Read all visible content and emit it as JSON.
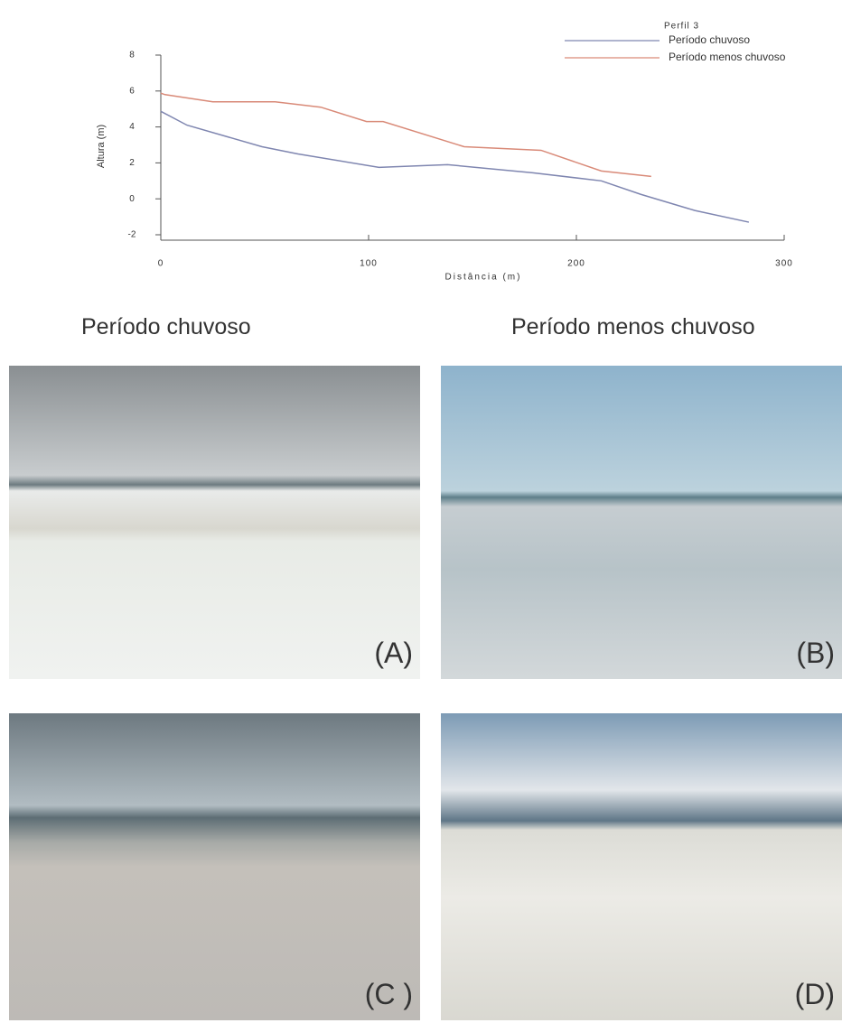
{
  "chart_data": {
    "type": "line",
    "title": "Perfil 3",
    "x_label": "Distância (m)",
    "y_label": "Altura (m)",
    "xlim": [
      0,
      300
    ],
    "xticks": [
      0,
      100,
      200,
      300
    ],
    "ylim": [
      -2,
      8
    ],
    "yticks": [
      -2,
      0,
      2,
      4,
      6,
      8
    ],
    "legend": "top-right",
    "series": [
      {
        "name": "Período chuvoso",
        "color": "#7f86b0",
        "x": [
          0,
          12.6,
          48.7,
          66,
          105,
          138,
          179,
          212,
          231,
          257,
          283
        ],
        "values": [
          4.87,
          4.1,
          2.9,
          2.5,
          1.75,
          1.9,
          1.45,
          1.0,
          0.25,
          -0.65,
          -1.3
        ]
      },
      {
        "name": "Período menos chuvoso",
        "color": "#d98a78",
        "x": [
          0,
          2,
          25,
          55,
          77,
          99,
          107,
          146,
          183,
          212,
          236
        ],
        "values": [
          5.88,
          5.8,
          5.4,
          5.4,
          5.1,
          4.3,
          4.3,
          2.9,
          2.7,
          1.55,
          1.25
        ]
      }
    ]
  },
  "headings": [
    "Período chuvoso",
    "Período menos chuvoso"
  ],
  "photos": [
    {
      "label": "(A)"
    },
    {
      "label": "(B)"
    },
    {
      "label": "(C )"
    },
    {
      "label": "(D)"
    }
  ]
}
